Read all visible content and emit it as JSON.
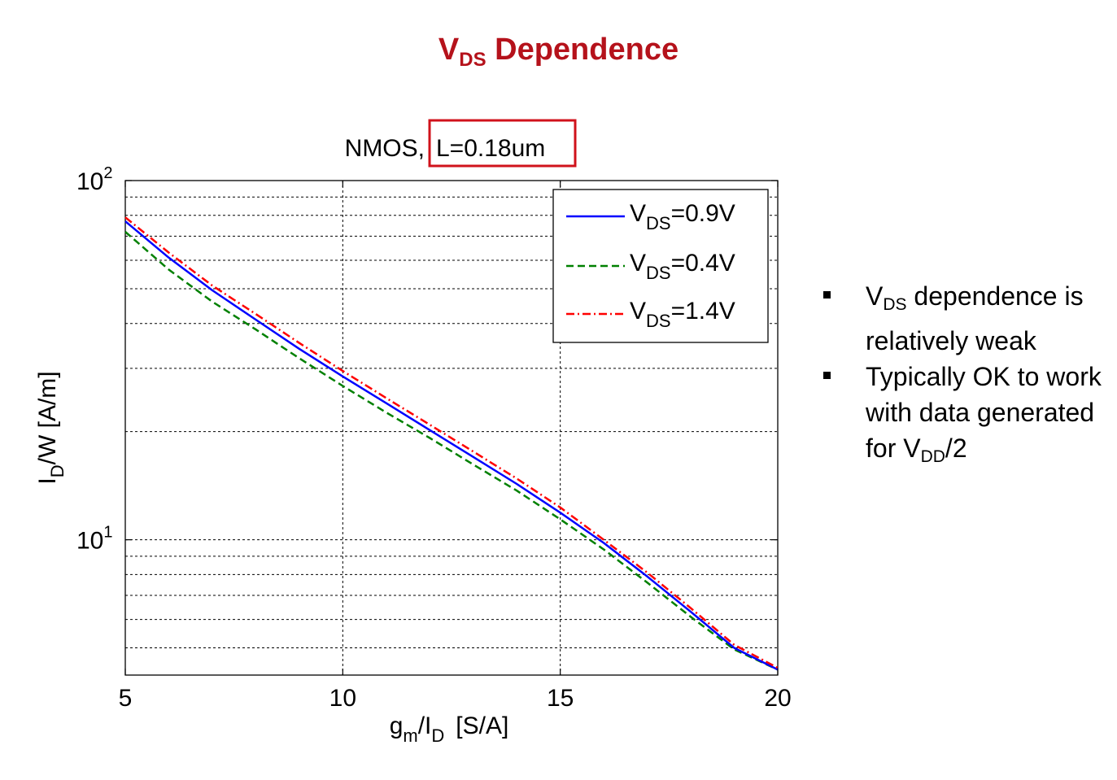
{
  "slide": {
    "title_main": "V",
    "title_sub": "DS",
    "title_rest": " Dependence"
  },
  "bullets": {
    "b1_v": "V",
    "b1_sub": "DS",
    "b1_rest": " dependence is relatively weak",
    "b2_pre": "Typically OK to work with data generated for V",
    "b2_sub": "DD",
    "b2_rest": "/2"
  },
  "colors": {
    "title": "#b5121b",
    "highlight_box": "#d0121b",
    "vds_09": "#0000ff",
    "vds_04": "#008000",
    "vds_14": "#ff0000"
  },
  "chart_data": {
    "type": "line",
    "title_prefix": "NMOS,",
    "title_highlight": "L=0.18um",
    "xlabel_main": "g",
    "xlabel_sub1": "m",
    "xlabel_mid": "/I",
    "xlabel_sub2": "D",
    "xlabel_unit": "[S/A]",
    "ylabel_main": "I",
    "ylabel_sub": "D",
    "ylabel_rest": "/W [A/m]",
    "xlim": [
      5,
      20
    ],
    "ylim": [
      4.2,
      100
    ],
    "yscale": "log",
    "grid": true,
    "x_ticks": [
      "5",
      "10",
      "15",
      "20"
    ],
    "y_ticks": [
      {
        "base": "10",
        "exp": "1",
        "value": 10
      },
      {
        "base": "10",
        "exp": "2",
        "value": 100
      }
    ],
    "legend_position": "top-right",
    "series": [
      {
        "name_v": "V",
        "name_sub": "DS",
        "name_rest": "=0.9V",
        "style": "solid",
        "x": [
          5,
          6,
          7,
          8,
          9,
          10,
          11,
          12,
          13,
          14,
          15,
          16,
          17,
          18,
          19,
          20
        ],
        "y": [
          77,
          61,
          49.5,
          41,
          34,
          28.5,
          24,
          20.2,
          17,
          14.3,
          11.9,
          9.8,
          7.9,
          6.3,
          5.0,
          4.35
        ]
      },
      {
        "name_v": "V",
        "name_sub": "DS",
        "name_rest": "=0.4V",
        "style": "dashed",
        "x": [
          5,
          6,
          7,
          8,
          9,
          10,
          11,
          12,
          13,
          14,
          15,
          16,
          17,
          18,
          19,
          20
        ],
        "y": [
          72,
          56.5,
          46,
          38.5,
          32,
          26.8,
          22.6,
          19.2,
          16.2,
          13.7,
          11.4,
          9.4,
          7.6,
          6.1,
          4.95,
          4.35
        ]
      },
      {
        "name_v": "V",
        "name_sub": "DS",
        "name_rest": "=1.4V",
        "style": "dashdot",
        "x": [
          5,
          6,
          7,
          8,
          9,
          10,
          11,
          12,
          13,
          14,
          15,
          16,
          17,
          18,
          19,
          20
        ],
        "y": [
          79,
          63,
          51,
          42.5,
          35.3,
          29.5,
          24.8,
          20.9,
          17.6,
          14.8,
          12.3,
          10.0,
          8.1,
          6.45,
          5.1,
          4.4
        ]
      }
    ]
  }
}
